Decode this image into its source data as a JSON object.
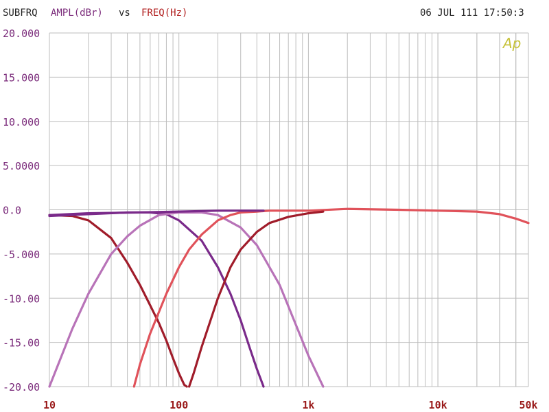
{
  "header": {
    "title_prefix": "SUBFRQ",
    "y_quantity": "AMPL(dBr)",
    "vs": "vs",
    "x_quantity": "FREQ(Hz)",
    "timestamp": "06 JUL 111 17:50:3"
  },
  "logo_text": "Ap",
  "colors": {
    "grid": "#bdbdbd",
    "y_label": "#7a2a7a",
    "x_label": "#9a1a1a",
    "series_1": "#a01c2a",
    "series_2": "#7a2a8a",
    "series_3": "#b873b8",
    "series_4": "#e0525a"
  },
  "chart_data": {
    "type": "line",
    "x_scale": "log",
    "xlim": [
      10,
      50000
    ],
    "ylim": [
      -20,
      20
    ],
    "grid": true,
    "xlabel": "FREQ(Hz)",
    "ylabel": "AMPL(dBr)",
    "y_ticks": [
      "20.000",
      "15.000",
      "10.000",
      "5.0000",
      "0.0",
      "-5.000",
      "-10.00",
      "-15.00",
      "-20.00"
    ],
    "y_tick_values": [
      20,
      15,
      10,
      5,
      0,
      -5,
      -10,
      -15,
      -20
    ],
    "x_ticks": [
      "10",
      "100",
      "1k",
      "10k",
      "50k"
    ],
    "x_tick_values": [
      10,
      100,
      1000,
      10000,
      50000
    ],
    "series": [
      {
        "color_key": "series_1",
        "x": [
          10,
          15,
          20,
          30,
          40,
          50,
          60,
          70,
          80,
          90,
          100,
          110,
          115
        ],
        "y": [
          -0.6,
          -0.7,
          -1.2,
          -3.2,
          -6.0,
          -8.5,
          -10.8,
          -12.8,
          -14.8,
          -16.8,
          -18.5,
          -19.8,
          -20
        ]
      },
      {
        "color_key": "series_2",
        "x": [
          10,
          20,
          40,
          60,
          80,
          100,
          150,
          200,
          250,
          300,
          350,
          400,
          450
        ],
        "y": [
          -0.7,
          -0.5,
          -0.3,
          -0.3,
          -0.5,
          -1.2,
          -3.5,
          -6.5,
          -9.5,
          -12.5,
          -15.5,
          -18.0,
          -20
        ]
      },
      {
        "color_key": "series_3",
        "x": [
          10,
          15,
          20,
          30,
          40,
          50,
          70,
          100,
          150,
          200,
          300,
          400,
          600,
          800,
          1000,
          1300
        ],
        "y": [
          -20,
          -13.5,
          -9.5,
          -5.0,
          -3.0,
          -1.8,
          -0.6,
          -0.3,
          -0.3,
          -0.6,
          -2.0,
          -4.0,
          -8.5,
          -13.0,
          -16.5,
          -20
        ]
      },
      {
        "color_key": "series_4",
        "x": [
          45,
          50,
          60,
          80,
          100,
          120,
          150,
          200,
          250,
          300,
          400,
          500,
          700,
          1000,
          2000,
          5000,
          10000,
          20000,
          30000,
          40000,
          50000
        ],
        "y": [
          -20,
          -17.5,
          -14.0,
          -9.5,
          -6.5,
          -4.5,
          -2.8,
          -1.2,
          -0.6,
          -0.3,
          -0.2,
          -0.1,
          -0.1,
          -0.1,
          0.1,
          0.0,
          -0.1,
          -0.2,
          -0.5,
          -1.0,
          -1.5
        ]
      },
      {
        "color_key": "series_1",
        "x": [
          120,
          130,
          150,
          200,
          250,
          300,
          400,
          500,
          700,
          1000,
          1300
        ],
        "y": [
          -20,
          -18.5,
          -15.5,
          -10.0,
          -6.5,
          -4.5,
          -2.5,
          -1.5,
          -0.8,
          -0.4,
          -0.2
        ]
      },
      {
        "color_key": "series_2",
        "x": [
          10,
          20,
          50,
          100,
          200,
          450
        ],
        "y": [
          -0.6,
          -0.4,
          -0.3,
          -0.2,
          -0.1,
          -0.1
        ]
      }
    ]
  }
}
